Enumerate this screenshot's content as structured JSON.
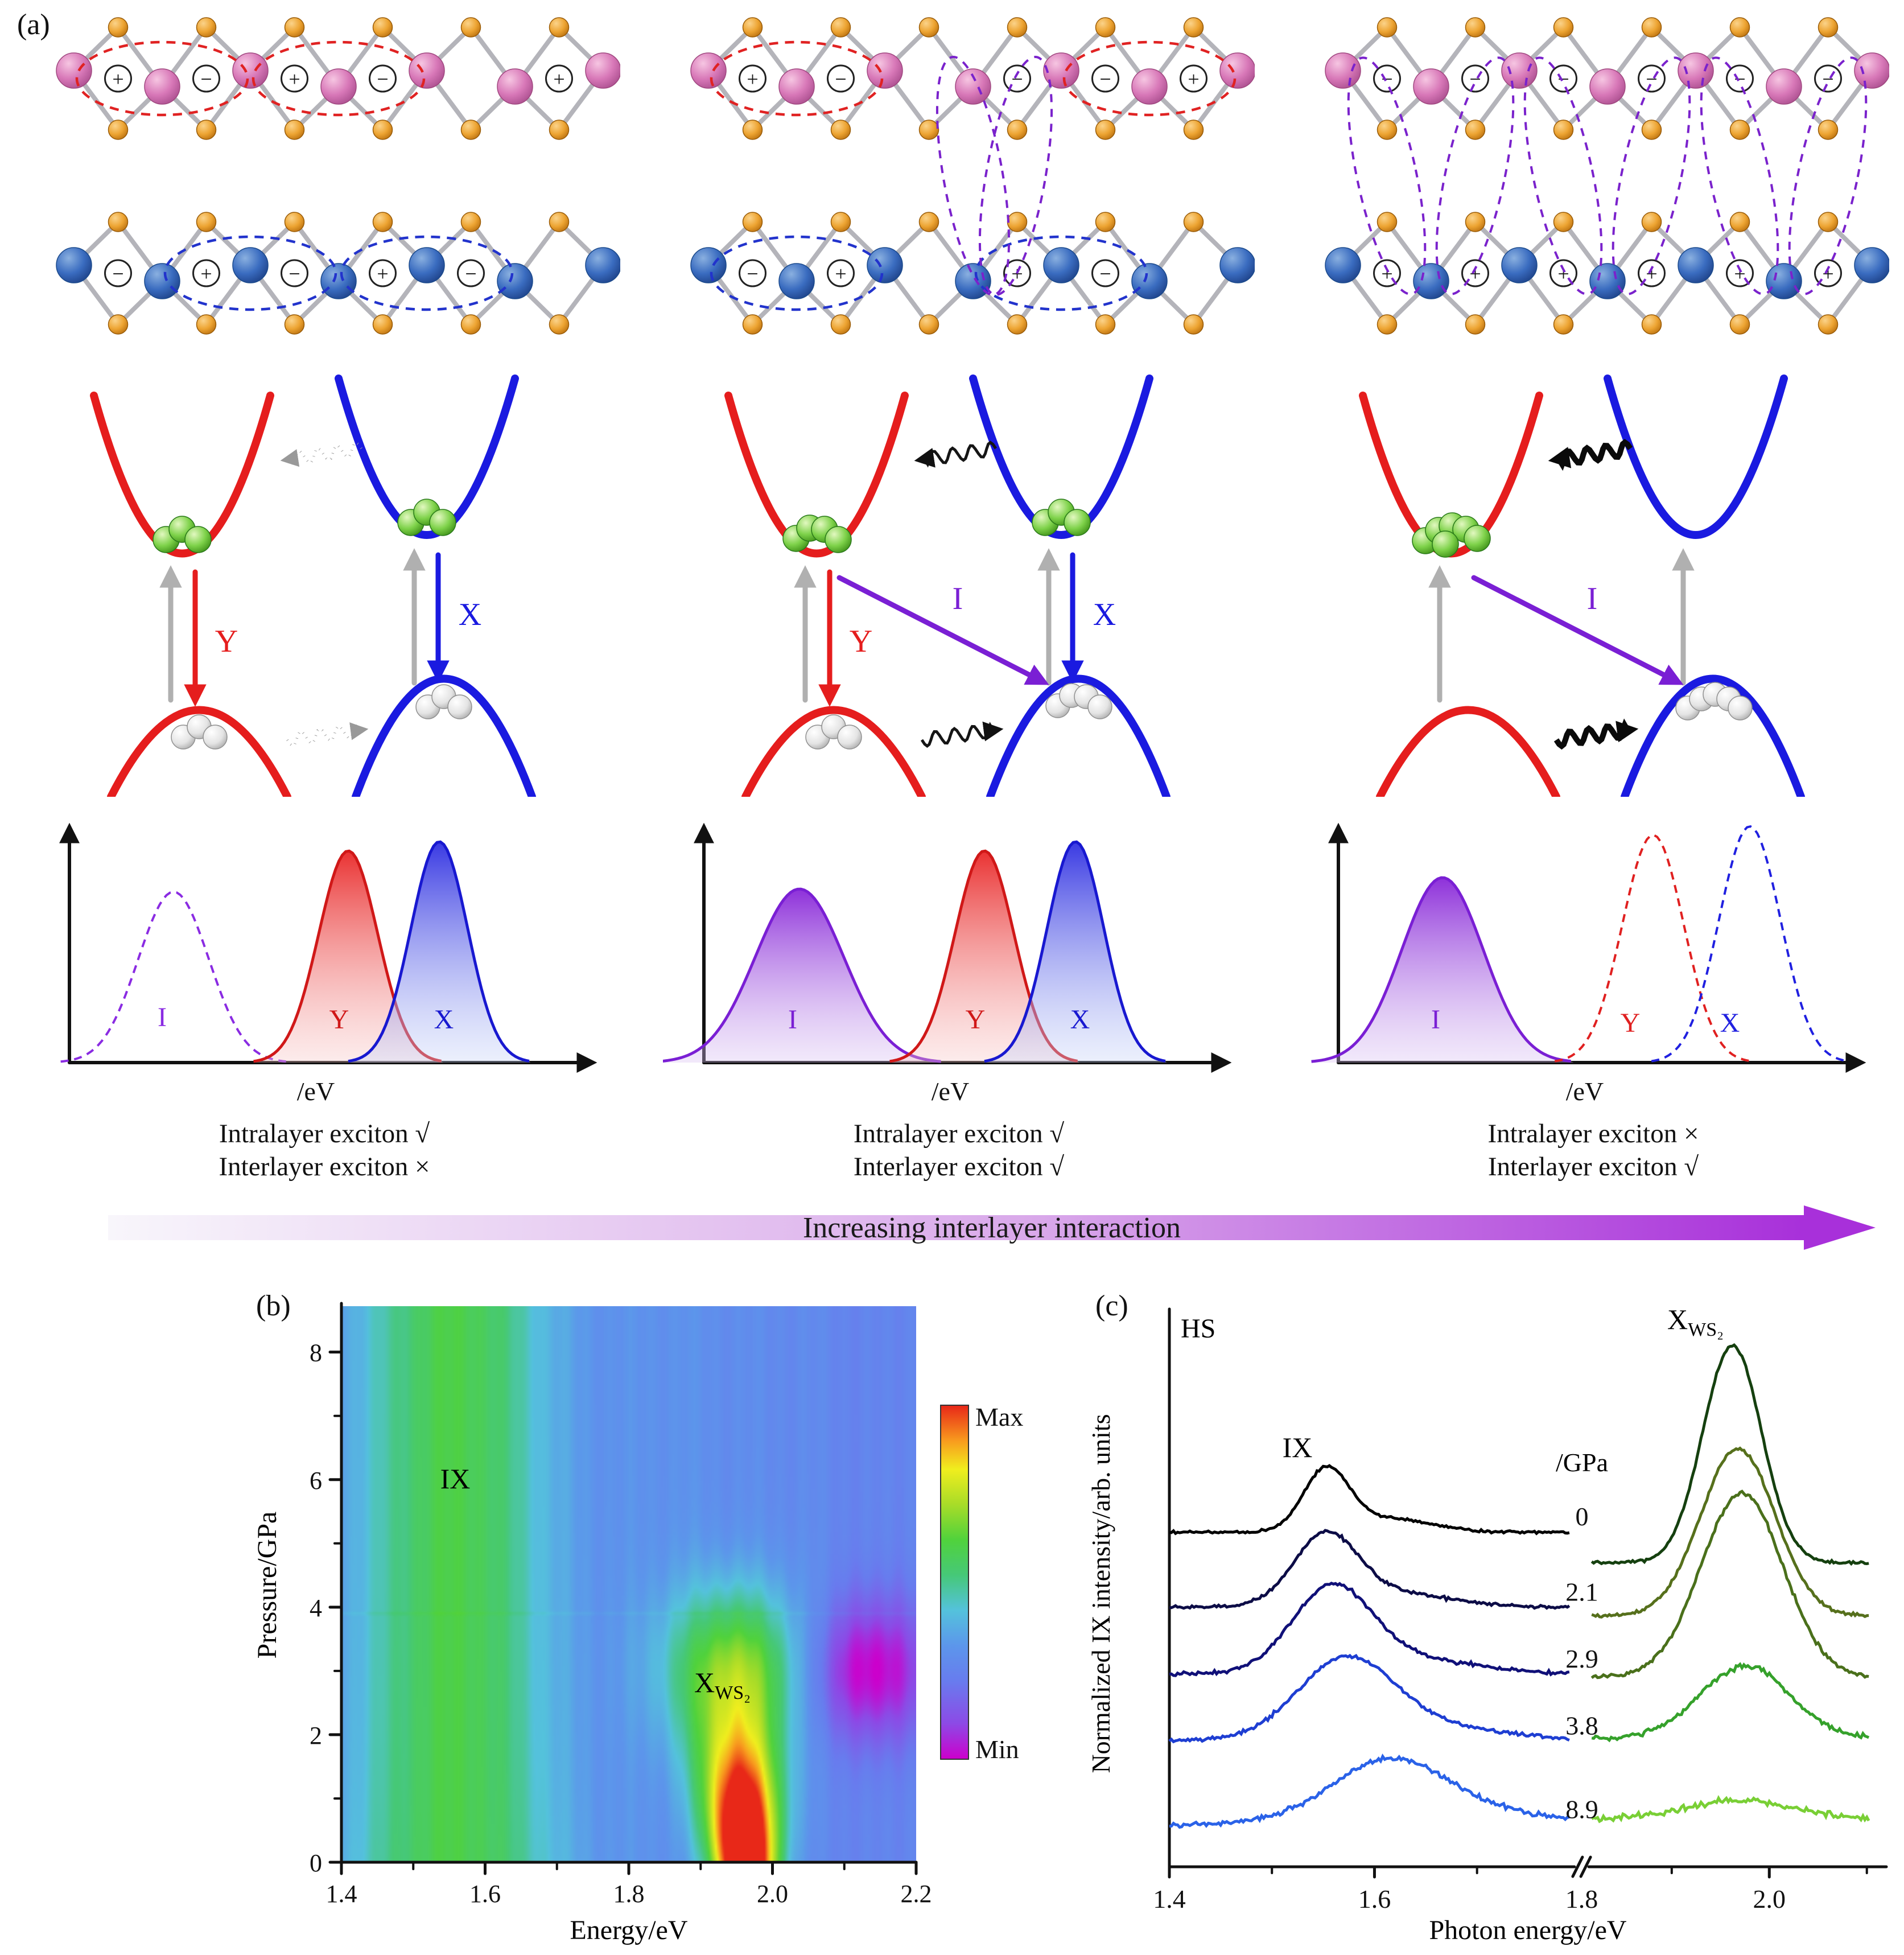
{
  "figure_labels": {
    "a": "(a)",
    "b": "(b)",
    "c": "(c)"
  },
  "symbols": {
    "plus": "+",
    "minus": "−"
  },
  "panel_a": {
    "exciton_labels": {
      "interlayer": "I",
      "red": "Y",
      "blue": "X"
    },
    "axis_unit": "/eV",
    "arrow_text": "Increasing interlayer interaction",
    "columns": [
      {
        "captions": [
          "Intralayer exciton √",
          "Interlayer exciton ×"
        ]
      },
      {
        "captions": [
          "Intralayer exciton √",
          "Interlayer exciton √"
        ]
      },
      {
        "captions": [
          "Intralayer exciton ×",
          "Interlayer exciton √"
        ]
      }
    ]
  },
  "panel_b": {
    "xlabel": "Energy/eV",
    "ylabel": "Pressure/GPa",
    "x_ticks": [
      "1.4",
      "1.6",
      "1.8",
      "2.0",
      "2.2"
    ],
    "y_ticks": [
      "0",
      "2",
      "4",
      "6",
      "8"
    ],
    "colorbar": {
      "max": "Max",
      "min": "Min"
    },
    "annotations": {
      "ix": "IX",
      "xws2_main": "X",
      "xws2_sub": "WS₂"
    }
  },
  "panel_c": {
    "xlabel": "Photon energy/eV",
    "ylabel": "Normalized IX intensity/arb. units",
    "x_ticks": [
      "1.4",
      "1.6",
      "1.8",
      "2.0"
    ],
    "sample_label": "HS",
    "pressure_unit": "/GPa",
    "pressures": [
      "0",
      "2.1",
      "2.9",
      "3.8",
      "8.9"
    ],
    "annotations": {
      "ix": "IX",
      "xws2_main": "X",
      "xws2_sub": "WS₂"
    }
  },
  "chart_data": [
    {
      "type": "heatmap",
      "panel": "b",
      "xlabel": "Energy/eV",
      "ylabel": "Pressure/GPa",
      "x_range": [
        1.4,
        2.2
      ],
      "y_range": [
        0,
        8.7
      ],
      "x_ticks": [
        "1.4",
        "1.6",
        "1.8",
        "2.0",
        "2.2"
      ],
      "y_ticks": [
        "0",
        "2",
        "4",
        "6",
        "8"
      ],
      "colorbar": {
        "top": "Max",
        "bottom": "Min"
      },
      "colormap_min_to_max": [
        "#cc00cc",
        "#8c4ae6",
        "#687cee",
        "#5c96eb",
        "#54c2dc",
        "#46c878",
        "#50d23c",
        "#a8dc28",
        "#f0ee1e",
        "#f89c1e",
        "#e82818"
      ],
      "features": [
        {
          "name": "IX",
          "type": "vertical-band",
          "center_eV": 1.555,
          "sigma_eV": 0.085,
          "pressure_range": [
            0,
            8.7
          ],
          "relative_intensity": 0.6
        },
        {
          "name": "X_WS2",
          "type": "peak",
          "center_eV": 1.96,
          "sigma_eV": 0.035,
          "pressure_range": [
            0,
            4.0
          ],
          "relative_intensity": 1.0,
          "note": "Max near 0 GPa, vanishes above ~4 GPa"
        },
        {
          "name": "low-intensity-patch",
          "type": "dip",
          "center_eV": 2.13,
          "pressure": 3.0,
          "relative_intensity": 0.05
        }
      ]
    },
    {
      "type": "line",
      "panel": "c",
      "xlabel": "Photon energy/eV",
      "ylabel": "Normalized IX intensity/arb. units",
      "x_break": [
        1.795,
        1.815
      ],
      "series": [
        {
          "pressure": "0",
          "ix": {
            "center": 1.553,
            "sigma": 0.022,
            "amp": 0.11,
            "color": "#000000"
          },
          "xws2": {
            "center": 1.962,
            "sigma": 0.03,
            "amp": 0.39,
            "color": "#15400f"
          }
        },
        {
          "pressure": "2.1",
          "ix": {
            "center": 1.552,
            "sigma": 0.031,
            "amp": 0.12,
            "color": "#0c0c46"
          },
          "xws2": {
            "center": 1.968,
            "sigma": 0.038,
            "amp": 0.3,
            "color": "#56701c"
          }
        },
        {
          "pressure": "2.9",
          "ix": {
            "center": 1.558,
            "sigma": 0.038,
            "amp": 0.14,
            "color": "#101078"
          },
          "xws2": {
            "center": 1.972,
            "sigma": 0.042,
            "amp": 0.33,
            "color": "#4a701b"
          }
        },
        {
          "pressure": "3.8",
          "ix": {
            "center": 1.572,
            "sigma": 0.046,
            "amp": 0.13,
            "color": "#1e3ed2"
          },
          "xws2": {
            "center": 1.975,
            "sigma": 0.046,
            "amp": 0.13,
            "color": "#35a12b"
          }
        },
        {
          "pressure": "8.9",
          "ix": {
            "center": 1.615,
            "sigma": 0.056,
            "amp": 0.1,
            "color": "#2a62e8"
          },
          "xws2": {
            "center": 1.97,
            "sigma": 0.055,
            "amp": 0.035,
            "color": "#79cf35"
          }
        }
      ]
    }
  ]
}
